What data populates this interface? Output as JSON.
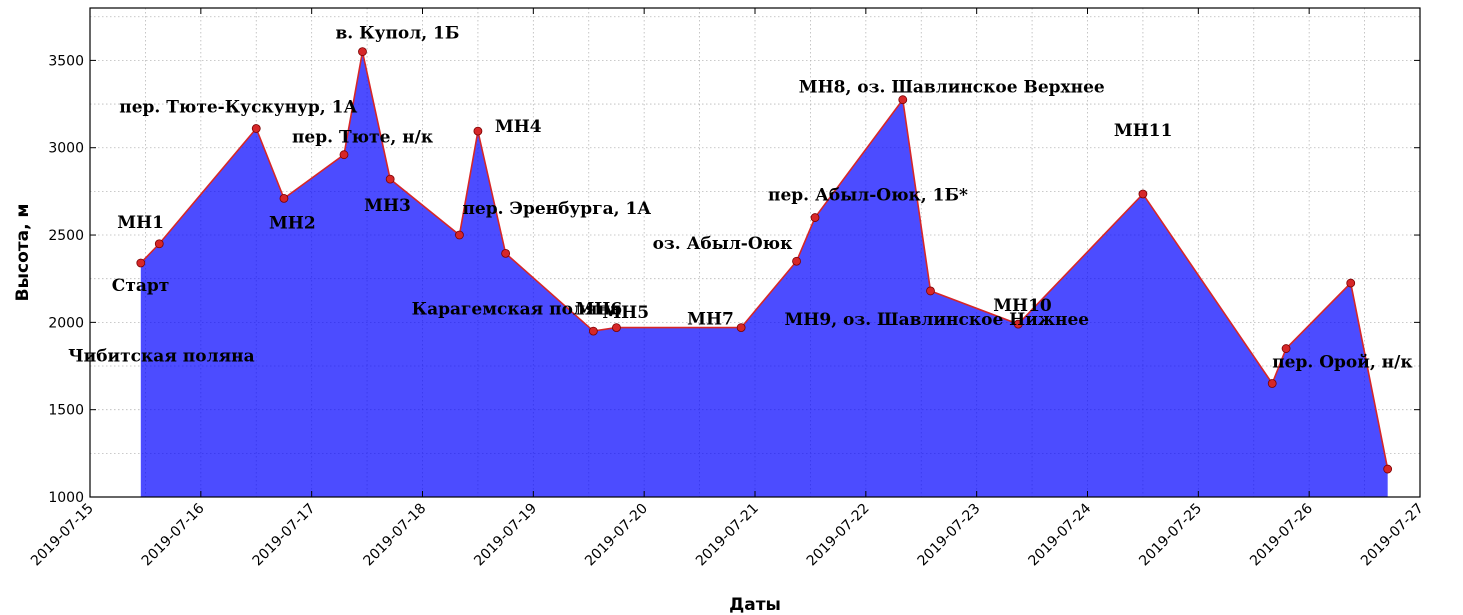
{
  "chart_data": {
    "type": "area",
    "title": "",
    "xlabel": "Даты",
    "ylabel": "Высота, м",
    "xlim": [
      "2019-07-15 00:00",
      "2019-07-27 00:00"
    ],
    "ylim": [
      1000,
      3800
    ],
    "grid": true,
    "fill_color": "#0000ff",
    "line_color": "#d62728",
    "marker_color": "#d62728",
    "x_ticks": [
      "2019-07-15",
      "2019-07-16",
      "2019-07-17",
      "2019-07-18",
      "2019-07-19",
      "2019-07-20",
      "2019-07-21",
      "2019-07-22",
      "2019-07-23",
      "2019-07-24",
      "2019-07-25",
      "2019-07-26",
      "2019-07-27"
    ],
    "y_ticks": [
      1000,
      1500,
      2000,
      2500,
      3000,
      3500
    ],
    "points": [
      {
        "x": "2019-07-15 11:00",
        "y": 2340
      },
      {
        "x": "2019-07-15 15:00",
        "y": 2450
      },
      {
        "x": "2019-07-16 12:00",
        "y": 3110
      },
      {
        "x": "2019-07-16 18:00",
        "y": 2710
      },
      {
        "x": "2019-07-17 07:00",
        "y": 2960
      },
      {
        "x": "2019-07-17 11:00",
        "y": 3550
      },
      {
        "x": "2019-07-17 17:00",
        "y": 2820
      },
      {
        "x": "2019-07-18 08:00",
        "y": 2500
      },
      {
        "x": "2019-07-18 12:00",
        "y": 3095
      },
      {
        "x": "2019-07-18 18:00",
        "y": 2395
      },
      {
        "x": "2019-07-19 13:00",
        "y": 1950
      },
      {
        "x": "2019-07-19 18:00",
        "y": 1970
      },
      {
        "x": "2019-07-20 21:00",
        "y": 1970
      },
      {
        "x": "2019-07-21 09:00",
        "y": 2350
      },
      {
        "x": "2019-07-21 13:00",
        "y": 2600
      },
      {
        "x": "2019-07-22 08:00",
        "y": 3275
      },
      {
        "x": "2019-07-22 14:00",
        "y": 2180
      },
      {
        "x": "2019-07-23 09:00",
        "y": 1990
      },
      {
        "x": "2019-07-24 12:00",
        "y": 2735
      },
      {
        "x": "2019-07-25 16:00",
        "y": 1650
      },
      {
        "x": "2019-07-25 19:00",
        "y": 1850
      },
      {
        "x": "2019-07-26 09:00",
        "y": 2225
      },
      {
        "x": "2019-07-26 17:00",
        "y": 1160
      }
    ],
    "annotations": [
      {
        "text": "Старт",
        "anchor": "start",
        "ax": 0,
        "ay": 40
      },
      {
        "text": "МН1",
        "anchor": "start",
        "ax": 0,
        "ay": 10
      },
      {
        "text": "пер. Тюте-Кускунур, 1А",
        "anchor": "start",
        "ax": 0,
        "ay": 20
      },
      {
        "text": "МН2",
        "anchor": "start",
        "ax": 0,
        "ay": 21
      },
      {
        "text": "пер. Тюте, н/к",
        "anchor": "start",
        "ax": -2,
        "ay": -8
      },
      {
        "text": "в. Купол, 1Б",
        "anchor": "start",
        "ax": 0,
        "ay": 6
      },
      {
        "text": "МН3",
        "anchor": "start",
        "ax": -27,
        "ay": 26
      },
      {
        "text": "пер. Эренбурга, 1А",
        "anchor": "start",
        "ax": 1,
        "ay": -18
      },
      {
        "text": "МН4",
        "anchor": "start",
        "ax": 1,
        "ay": -2
      },
      {
        "text": "Карагемская поляна",
        "anchor": "start",
        "ax": 0,
        "ay": 34
      },
      {
        "text": "МН5",
        "anchor": "start",
        "ax": 0,
        "ay": 11
      },
      {
        "text": "МН6",
        "anchor": "start",
        "ax": 0,
        "ay": 14
      },
      {
        "text": "МН7",
        "anchor": "start",
        "ax": 1,
        "ay": -3
      },
      {
        "text": "оз. Абыл-Оюк",
        "anchor": "start",
        "ax": 0,
        "ay": 13
      },
      {
        "text": "пер. Абыл-Оюк, 1Б*",
        "anchor": "start",
        "ax": 1,
        "ay": 12
      },
      {
        "text": "МН8, оз. Шавлинское Верхнее",
        "anchor": "start",
        "ax": 2,
        "ay": 5
      },
      {
        "text": "МН9, оз. Шавлинское Нижнее",
        "anchor": "start",
        "ax": 0,
        "ay": 36
      },
      {
        "text": "МН10",
        "anchor": "start",
        "ax": 1,
        "ay": 11
      },
      {
        "text": "МН11",
        "anchor": "start",
        "ax": 0,
        "ay": 32
      },
      {
        "text": "пер. Орой, н/к",
        "anchor": "start",
        "ax": 1,
        "ay": 21
      },
      {
        "text": "Чибитская поляна",
        "anchor": "start",
        "ax": 0,
        "ay": 14
      }
    ]
  }
}
